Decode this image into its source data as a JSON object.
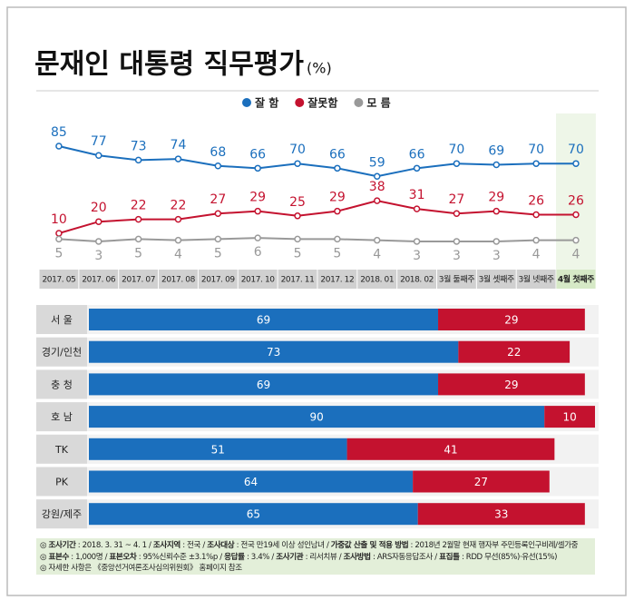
{
  "title": "문재인 대통령 직무평가",
  "unit": "(%)",
  "chart_data": [
    {
      "type": "line",
      "categories": [
        "2017. 05",
        "2017. 06",
        "2017. 07",
        "2017. 08",
        "2017. 09",
        "2017. 10",
        "2017. 11",
        "2017. 12",
        "2018. 01",
        "2018. 02",
        "3월 둘째주",
        "3월 셋째주",
        "3월 넷째주",
        "4월 첫째주"
      ],
      "series": [
        {
          "name": "잘 함",
          "color": "#1b6fbd",
          "values": [
            85,
            77,
            73,
            74,
            68,
            66,
            70,
            66,
            59,
            66,
            70,
            69,
            70,
            70
          ]
        },
        {
          "name": "잘못함",
          "color": "#c4122f",
          "values": [
            10,
            20,
            22,
            22,
            27,
            29,
            25,
            29,
            38,
            31,
            27,
            29,
            26,
            26
          ]
        },
        {
          "name": "모 름",
          "color": "#999999",
          "values": [
            5,
            3,
            5,
            4,
            5,
            6,
            5,
            5,
            4,
            3,
            3,
            3,
            4,
            4
          ]
        }
      ],
      "legend": "top"
    },
    {
      "type": "stacked-bar-horizontal",
      "categories": [
        "서 울",
        "경기/인천",
        "충 청",
        "호 남",
        "TK",
        "PK",
        "강원/제주"
      ],
      "series": [
        {
          "name": "잘 함",
          "color": "#1b6fbd",
          "values": [
            69,
            73,
            69,
            90,
            51,
            64,
            65
          ]
        },
        {
          "name": "잘못함",
          "color": "#c4122f",
          "values": [
            29,
            22,
            29,
            10,
            41,
            27,
            33
          ]
        }
      ]
    }
  ],
  "notes": [
    [
      {
        "text": "◎ ",
        "bold": false
      },
      {
        "text": "조사기간",
        "bold": true
      },
      {
        "text": " : 2018. 3. 31 ~ 4. 1 / ",
        "bold": false
      },
      {
        "text": "조사지역",
        "bold": true
      },
      {
        "text": " : 전국 / ",
        "bold": false
      },
      {
        "text": "조사대상",
        "bold": true
      },
      {
        "text": " : 전국 만19세 이상 성인남녀 / ",
        "bold": false
      },
      {
        "text": "가중값 산출 및 적용 방법",
        "bold": true
      },
      {
        "text": " : 2018년 2월말 현재 행자부 주민등록인구비례/셀가중",
        "bold": false
      }
    ],
    [
      {
        "text": "◎ ",
        "bold": false
      },
      {
        "text": "표본수",
        "bold": true
      },
      {
        "text": " : 1,000명 / ",
        "bold": false
      },
      {
        "text": "표본오차",
        "bold": true
      },
      {
        "text": " : 95%신뢰수준 ±3.1%p / ",
        "bold": false
      },
      {
        "text": "응답률",
        "bold": true
      },
      {
        "text": " : 3.4% / ",
        "bold": false
      },
      {
        "text": "조사기관",
        "bold": true
      },
      {
        "text": " : 리서치뷰 / ",
        "bold": false
      },
      {
        "text": "조사방법",
        "bold": true
      },
      {
        "text": " : ARS자동응답조사 / ",
        "bold": false
      },
      {
        "text": "표집틀",
        "bold": true
      },
      {
        "text": " : RDD 무선(85%)·유선(15%)",
        "bold": false
      }
    ],
    [
      {
        "text": "◎ 자세한 사항은 《중앙선거여론조사심의위원회》 홈페이지 참조",
        "bold": false
      }
    ]
  ]
}
